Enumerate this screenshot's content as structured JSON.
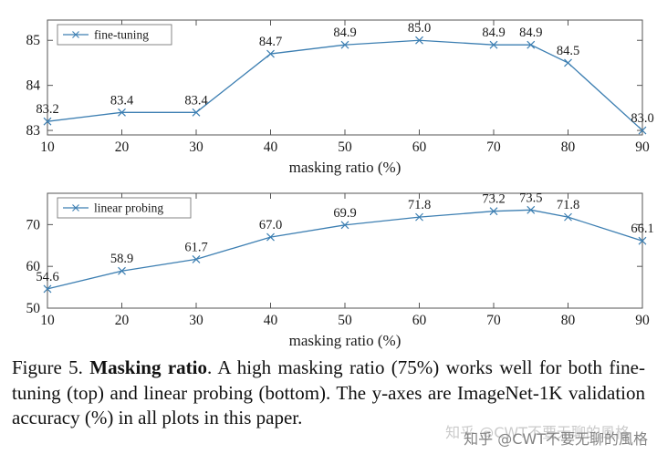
{
  "figure": {
    "caption_prefix": "Figure 5. ",
    "caption_bold": "Masking ratio",
    "caption_rest": ". A high masking ratio (75%) works well for both fine-tuning (top) and linear probing (bottom). The y-axes are ImageNet-1K validation accuracy (%) in all plots in this paper."
  },
  "watermark": {
    "text": "知乎 @CWT不要无聊的風格"
  },
  "colors": {
    "line": "#3d7fb2",
    "axis": "#555555",
    "text": "#1a1a1a",
    "legend_border": "#777777"
  },
  "chart_data": [
    {
      "type": "line",
      "name": "fine-tuning-plot",
      "legend": "fine-tuning",
      "legend_position": "top-left",
      "marker": "x",
      "grid": false,
      "x": [
        10,
        20,
        30,
        40,
        50,
        60,
        70,
        75,
        80,
        90
      ],
      "values": [
        83.2,
        83.4,
        83.4,
        84.7,
        84.9,
        85.0,
        84.9,
        84.9,
        84.5,
        83.0
      ],
      "xlabel": "masking ratio (%)",
      "ylabel": "ImageNet-1K validation accuracy (%)",
      "xticks": [
        10,
        20,
        30,
        40,
        50,
        60,
        70,
        80,
        90
      ],
      "yticks": [
        83,
        84,
        85
      ],
      "xlim": [
        10,
        90
      ],
      "ylim": [
        82.9,
        85.45
      ]
    },
    {
      "type": "line",
      "name": "linear-probing-plot",
      "legend": "linear probing",
      "legend_position": "top-left",
      "marker": "x",
      "grid": false,
      "x": [
        10,
        20,
        30,
        40,
        50,
        60,
        70,
        75,
        80,
        90
      ],
      "values": [
        54.6,
        58.9,
        61.7,
        67.0,
        69.9,
        71.8,
        73.2,
        73.5,
        71.8,
        66.1
      ],
      "xlabel": "masking ratio (%)",
      "ylabel": "ImageNet-1K validation accuracy (%)",
      "xticks": [
        10,
        20,
        30,
        40,
        50,
        60,
        70,
        80,
        90
      ],
      "yticks": [
        50,
        60,
        70
      ],
      "xlim": [
        10,
        90
      ],
      "ylim": [
        50,
        77.5
      ]
    }
  ]
}
